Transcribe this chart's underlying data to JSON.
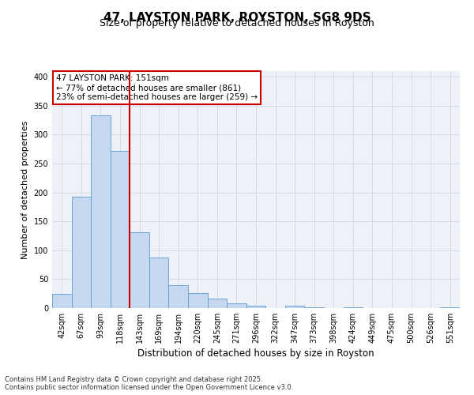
{
  "title": "47, LAYSTON PARK, ROYSTON, SG8 9DS",
  "subtitle": "Size of property relative to detached houses in Royston",
  "xlabel": "Distribution of detached houses by size in Royston",
  "ylabel": "Number of detached properties",
  "footer_line1": "Contains HM Land Registry data © Crown copyright and database right 2025.",
  "footer_line2": "Contains public sector information licensed under the Open Government Licence v3.0.",
  "bin_labels": [
    "42sqm",
    "67sqm",
    "93sqm",
    "118sqm",
    "143sqm",
    "169sqm",
    "194sqm",
    "220sqm",
    "245sqm",
    "271sqm",
    "296sqm",
    "322sqm",
    "347sqm",
    "373sqm",
    "398sqm",
    "424sqm",
    "449sqm",
    "475sqm",
    "500sqm",
    "526sqm",
    "551sqm"
  ],
  "bar_values": [
    25,
    193,
    333,
    272,
    131,
    87,
    40,
    26,
    16,
    8,
    4,
    0,
    4,
    2,
    0,
    2,
    0,
    0,
    0,
    0,
    2
  ],
  "bar_color": "#c5d8f0",
  "bar_edgecolor": "#5b9bd5",
  "grid_color": "#d0d8e8",
  "background_color": "#eef2f8",
  "vline_x_idx": 4,
  "vline_color": "#cc0000",
  "annotation_text": "47 LAYSTON PARK: 151sqm\n← 77% of detached houses are smaller (861)\n23% of semi-detached houses are larger (259) →",
  "annotation_box_edgecolor": "#cc0000",
  "ylim": [
    0,
    410
  ],
  "yticks": [
    0,
    50,
    100,
    150,
    200,
    250,
    300,
    350,
    400
  ],
  "title_fontsize": 11,
  "subtitle_fontsize": 9,
  "xlabel_fontsize": 8.5,
  "ylabel_fontsize": 8,
  "tick_fontsize": 7,
  "annotation_fontsize": 7.5,
  "footer_fontsize": 6
}
